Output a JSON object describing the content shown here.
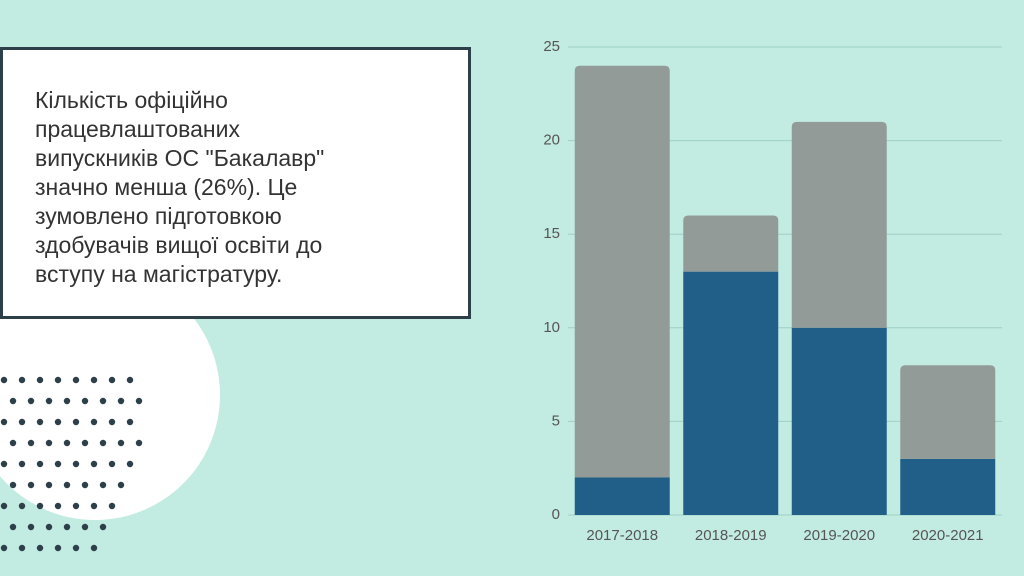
{
  "text_box": {
    "lines": [
      "Кількість офіційно",
      "працевлаштованих",
      "випускників ОС \"Бакалавр\"",
      "значно менша (26%). Це",
      "зумовлено підготовкою",
      "здобувачів вищої освіти до",
      "вступу на магістратуру."
    ]
  },
  "chart_data": {
    "type": "bar",
    "stacked": true,
    "categories": [
      "2017-2018",
      "2018-2019",
      "2019-2020",
      "2020-2021"
    ],
    "series": [
      {
        "color": "#215f89",
        "values": [
          2,
          13,
          10,
          3
        ]
      },
      {
        "color": "#939b98",
        "values": [
          22,
          3,
          11,
          5
        ]
      }
    ],
    "ylim": [
      0,
      25
    ],
    "yticks": [
      0,
      5,
      10,
      15,
      20,
      25
    ],
    "grid": true
  }
}
